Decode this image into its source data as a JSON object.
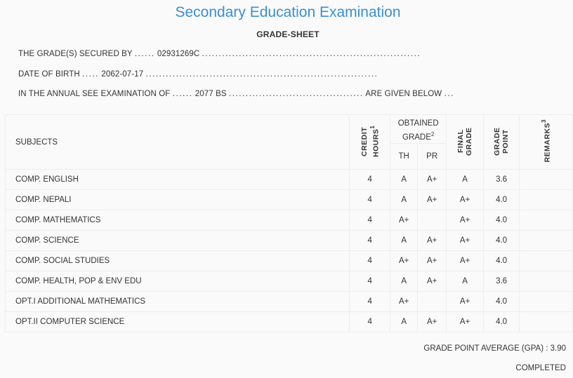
{
  "title": "Secondary Education Examination",
  "subtitle": "GRADE-SHEET",
  "info": {
    "secured_by_label": "THE GRADE(S) SECURED BY",
    "secured_by_value": "02931269C",
    "dob_label": "DATE OF BIRTH",
    "dob_value": "2062-07-17",
    "exam_label": "IN THE ANNUAL SEE EXAMINATION OF",
    "exam_value": "2077 BS",
    "exam_suffix": "ARE GIVEN BELOW"
  },
  "table": {
    "headers": {
      "subjects": "SUBJECTS",
      "credit_hours": "CREDIT HOURS",
      "credit_hours_note": "1",
      "obtained_grade": "OBTAINED GRADE",
      "obtained_grade_note": "2",
      "th": "TH",
      "pr": "PR",
      "final_grade": "FINAL GRADE",
      "grade_point": "GRADE POINT",
      "remarks": "REMARKS",
      "remarks_note": "3"
    },
    "rows": [
      {
        "subject": "COMP. ENGLISH",
        "credit": "4",
        "th": "A",
        "pr": "A+",
        "final": "A",
        "gp": "3.6",
        "remarks": ""
      },
      {
        "subject": "COMP. NEPALI",
        "credit": "4",
        "th": "A",
        "pr": "A+",
        "final": "A+",
        "gp": "4.0",
        "remarks": ""
      },
      {
        "subject": "COMP. MATHEMATICS",
        "credit": "4",
        "th": "A+",
        "pr": "",
        "final": "A+",
        "gp": "4.0",
        "remarks": ""
      },
      {
        "subject": "COMP. SCIENCE",
        "credit": "4",
        "th": "A",
        "pr": "A+",
        "final": "A+",
        "gp": "4.0",
        "remarks": ""
      },
      {
        "subject": "COMP. SOCIAL STUDIES",
        "credit": "4",
        "th": "A+",
        "pr": "A+",
        "final": "A+",
        "gp": "4.0",
        "remarks": ""
      },
      {
        "subject": "COMP. HEALTH, POP & ENV EDU",
        "credit": "4",
        "th": "A",
        "pr": "A+",
        "final": "A",
        "gp": "3.6",
        "remarks": ""
      },
      {
        "subject": "OPT.I ADDITIONAL MATHEMATICS",
        "credit": "4",
        "th": "A+",
        "pr": "",
        "final": "A+",
        "gp": "4.0",
        "remarks": ""
      },
      {
        "subject": "OPT.II COMPUTER SCIENCE",
        "credit": "4",
        "th": "A",
        "pr": "A+",
        "final": "A+",
        "gp": "4.0",
        "remarks": ""
      }
    ]
  },
  "gpa_text": "GRADE POINT AVERAGE (GPA) : 3.90",
  "status": "COMPLETED",
  "colors": {
    "title": "#3a8fd4",
    "text": "#333333",
    "background": "#fafafa",
    "border": "#eeeeee"
  }
}
